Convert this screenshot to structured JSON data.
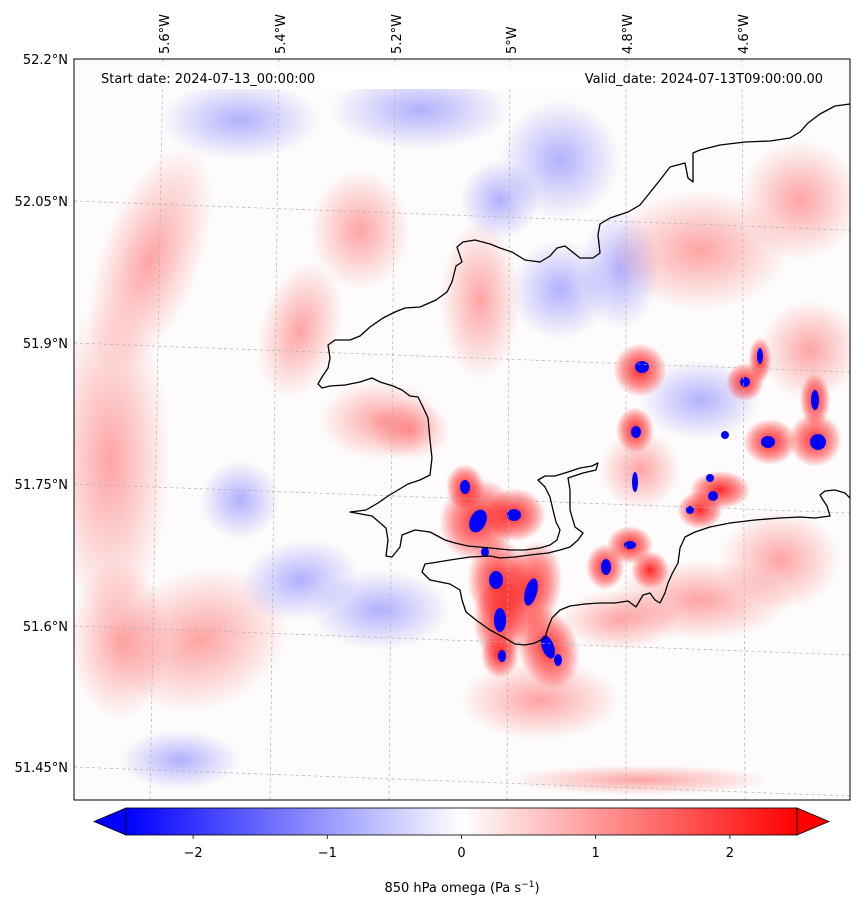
{
  "header": {
    "start_label": "Start date: 2024-07-13_00:00:00",
    "valid_label": "Valid_date: 2024-07-13T09:00:00.00"
  },
  "map": {
    "lon_labels": [
      "5.6°W",
      "5.4°W",
      "5.2°W",
      "5°W",
      "4.8°W",
      "4.6°W"
    ],
    "lat_labels": [
      "52.2°N",
      "52.05°N",
      "51.9°N",
      "51.75°N",
      "51.6°N",
      "51.45°N"
    ],
    "field": "850 hPa omega",
    "colors": {
      "negative": "#0000ff",
      "positive": "#ff0000",
      "neutral": "#ffffff",
      "coastline": "#000000",
      "gridline": "#b0b0b0"
    }
  },
  "colorbar": {
    "tick_labels": [
      "−2",
      "−1",
      "0",
      "1",
      "2"
    ],
    "tick_values": [
      -2,
      -1,
      0,
      1,
      2
    ],
    "range": [
      -2.5,
      2.5
    ],
    "label_main": "850 hPa omega (Pa s",
    "label_exp": "−1",
    "label_close": ")"
  }
}
